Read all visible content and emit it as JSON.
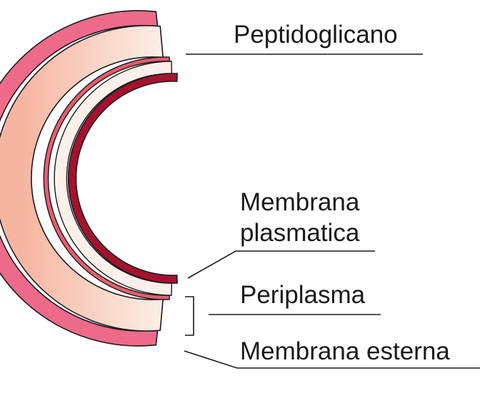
{
  "colors": {
    "outer_membrane": "#ee6a8a",
    "peptidoglycan_light": "#fdf0ea",
    "peptidoglycan_dark": "#f6b5a0",
    "thin_layer": "#e85c70",
    "plasma_membrane": "#a5122f",
    "outline": "#1a1a1a",
    "leader_line": "#1a1a1a"
  },
  "labels": {
    "peptidoglycan": "Peptidoglicano",
    "plasma_membrane_line1": "Membrana",
    "plasma_membrane_line2": "plasmatica",
    "periplasm": "Periplasma",
    "outer_membrane": "Membrana esterna"
  }
}
